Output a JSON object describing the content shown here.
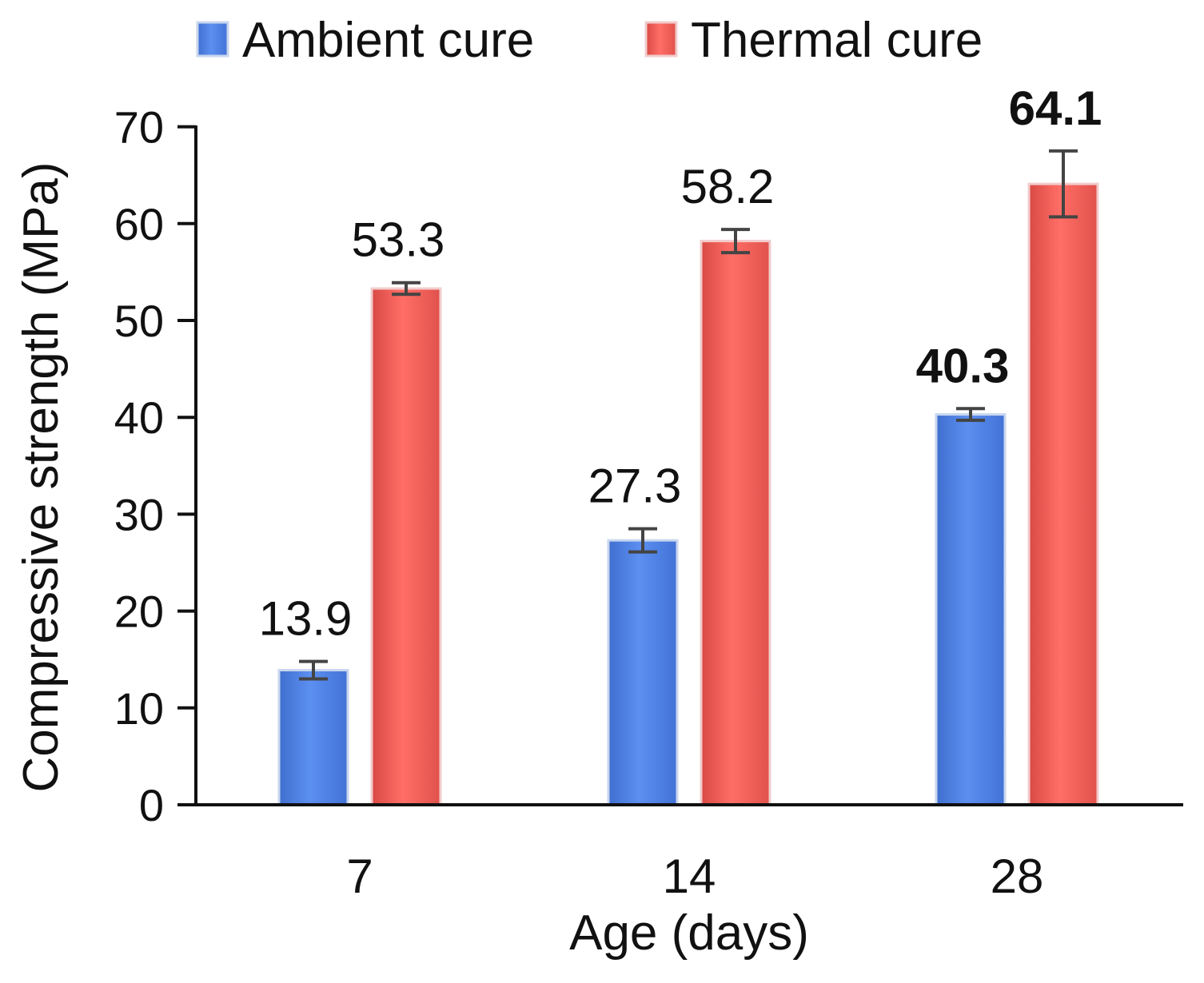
{
  "chart_data": {
    "type": "bar",
    "title": "",
    "xlabel": "Age (days)",
    "ylabel": "Compressive strength (MPa)",
    "categories": [
      "7",
      "14",
      "28"
    ],
    "ylim": [
      0,
      70
    ],
    "yticks": [
      0,
      10,
      20,
      30,
      40,
      50,
      60,
      70
    ],
    "grid": false,
    "legend_position": "top",
    "series": [
      {
        "name": "Ambient cure",
        "color": "#4a7fd9",
        "values": [
          13.9,
          27.3,
          40.3
        ],
        "errors": [
          0.9,
          1.2,
          0.6
        ],
        "labels": [
          "13.9",
          "27.3",
          "40.3"
        ],
        "label_bold": [
          false,
          false,
          true
        ]
      },
      {
        "name": "Thermal cure",
        "color": "#f0605a",
        "values": [
          53.3,
          58.2,
          64.1
        ],
        "errors": [
          0.6,
          1.2,
          3.4
        ],
        "labels": [
          "53.3",
          "58.2",
          "64.1"
        ],
        "label_bold": [
          false,
          false,
          true
        ]
      }
    ]
  }
}
